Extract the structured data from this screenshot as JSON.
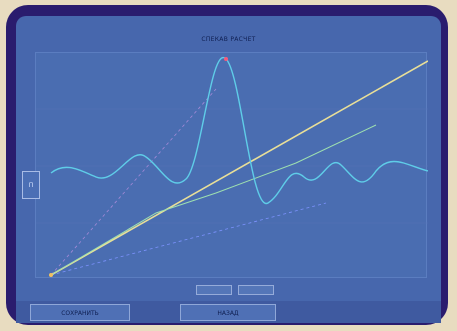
{
  "window": {
    "title": "СПЕКАВ РАСЧЕТ"
  },
  "plot": {
    "y_max_label": "",
    "y_min_label": "",
    "peak_label": "",
    "x_axis_label": "",
    "x_right_label": "",
    "colors": {
      "background": "#4a6db1",
      "wave": "#5fcde8",
      "diagonal": "#e9df98",
      "dashed": "#8aa0ff",
      "axis_labels": "#f55a7a"
    }
  },
  "side_button": {
    "label": "П"
  },
  "bottom_buttons": [
    {
      "label": "СОХРАНИТЬ"
    },
    {
      "label": "НАЗАД"
    }
  ]
}
